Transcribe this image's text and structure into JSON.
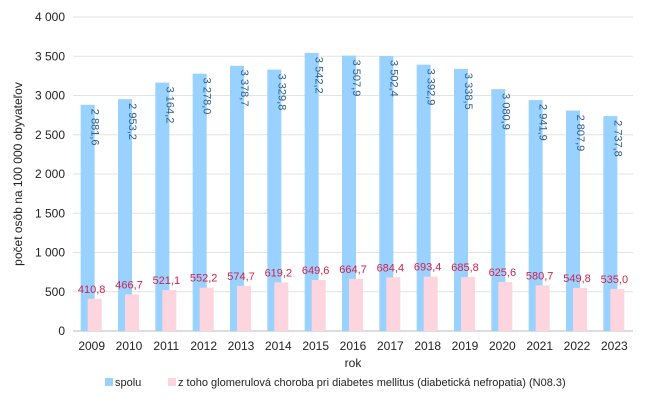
{
  "chart_data": {
    "type": "bar",
    "title": "",
    "xlabel": "rok",
    "ylabel": "počet osôb na 100 000 obyvateľov",
    "ylim": [
      0,
      4000
    ],
    "yticks": [
      0,
      500,
      1000,
      1500,
      2000,
      2500,
      3000,
      3500,
      4000
    ],
    "ytick_labels": [
      "0",
      "500",
      "1 000",
      "1 500",
      "2 000",
      "2 500",
      "3 000",
      "3 500",
      "4 000"
    ],
    "grid": true,
    "legend_position": "bottom",
    "categories": [
      "2009",
      "2010",
      "2011",
      "2012",
      "2013",
      "2014",
      "2015",
      "2016",
      "2017",
      "2018",
      "2019",
      "2020",
      "2021",
      "2022",
      "2023"
    ],
    "series": [
      {
        "name": "spolu",
        "color": "#99d1ff",
        "label_color": "#2e5e8c",
        "values": [
          2881.6,
          2953.2,
          3164.2,
          3278.0,
          3378.7,
          3329.8,
          3542.2,
          3507.9,
          3502.4,
          3392.9,
          3338.5,
          3080.9,
          2941.9,
          2807.9,
          2737.8
        ],
        "labels": [
          "2 881,6",
          "2 953,2",
          "3 164,2",
          "3 278,0",
          "3 378,7",
          "3 329,8",
          "3 542,2",
          "3 507,9",
          "3 502,4",
          "3 392,9",
          "3 338,5",
          "3 080,9",
          "2 941,9",
          "2 807,9",
          "2 737,8"
        ]
      },
      {
        "name": "z toho glomerulová choroba pri diabetes mellitus (diabetická nefropatia) (N08.3)",
        "color": "#fcd5de",
        "label_color": "#d0214b",
        "values": [
          410.8,
          466.7,
          521.1,
          552.2,
          574.7,
          619.2,
          649.6,
          664.7,
          684.4,
          693.4,
          685.8,
          625.6,
          580.7,
          549.8,
          535.0
        ],
        "labels": [
          "410,8",
          "466,7",
          "521,1",
          "552,2",
          "574,7",
          "619,2",
          "649,6",
          "664,7",
          "684,4",
          "693,4",
          "685,8",
          "625,6",
          "580,7",
          "549,8",
          "535,0"
        ]
      }
    ]
  }
}
